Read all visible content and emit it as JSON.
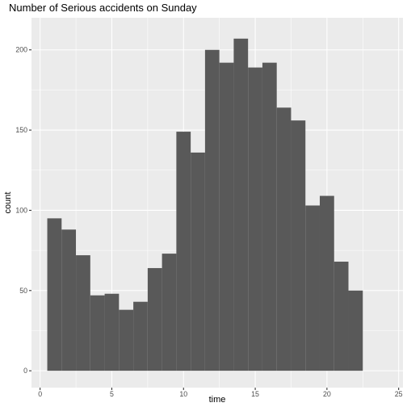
{
  "chart_data": {
    "type": "bar",
    "title": "Number of Serious accidents on Sunday",
    "xlabel": "time",
    "ylabel": "count",
    "xlim": [
      -0.6,
      25.3
    ],
    "ylim": [
      -10.5,
      220
    ],
    "x_ticks": [
      0,
      5,
      10,
      15,
      20,
      25
    ],
    "y_ticks": [
      0,
      50,
      100,
      150,
      200
    ],
    "bin_width": 1,
    "bins": [
      {
        "x": 1,
        "count": 95
      },
      {
        "x": 2,
        "count": 88
      },
      {
        "x": 3,
        "count": 72
      },
      {
        "x": 4,
        "count": 47
      },
      {
        "x": 5,
        "count": 48
      },
      {
        "x": 6,
        "count": 38
      },
      {
        "x": 7,
        "count": 43
      },
      {
        "x": 8,
        "count": 64
      },
      {
        "x": 9,
        "count": 73
      },
      {
        "x": 10,
        "count": 149
      },
      {
        "x": 11,
        "count": 136
      },
      {
        "x": 12,
        "count": 200
      },
      {
        "x": 13,
        "count": 192
      },
      {
        "x": 14,
        "count": 207
      },
      {
        "x": 15,
        "count": 189
      },
      {
        "x": 16,
        "count": 192
      },
      {
        "x": 17,
        "count": 164
      },
      {
        "x": 18,
        "count": 156
      },
      {
        "x": 19,
        "count": 103
      },
      {
        "x": 20,
        "count": 109
      },
      {
        "x": 21,
        "count": 68
      },
      {
        "x": 22,
        "count": 50
      }
    ],
    "grid": true,
    "colors": {
      "panel_background": "#ebebeb",
      "grid": "#ffffff",
      "bar_fill": "#595959"
    }
  }
}
